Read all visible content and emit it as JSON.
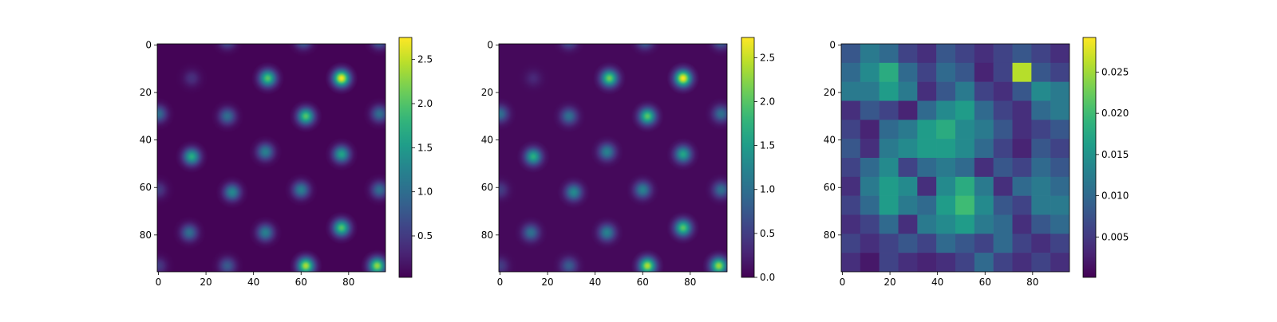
{
  "chart_data": [
    {
      "type": "heatmap",
      "colormap": "viridis",
      "x": [
        14,
        46,
        77,
        0,
        29,
        62,
        93,
        14,
        45,
        77,
        31,
        60,
        93,
        0,
        13,
        45,
        77,
        62,
        92,
        29,
        0,
        29,
        61,
        93
      ],
      "y": [
        14,
        14,
        14,
        29,
        30,
        30,
        29,
        47,
        45,
        46,
        62,
        61,
        61,
        61,
        79,
        79,
        77,
        93,
        93,
        93,
        93,
        -2,
        -2,
        -2
      ],
      "values": [
        0.4,
        2.0,
        2.7,
        1.0,
        1.0,
        2.0,
        1.0,
        1.7,
        1.2,
        1.6,
        1.3,
        1.2,
        1.0,
        0.5,
        1.0,
        1.2,
        2.0,
        2.4,
        2.3,
        0.8,
        0.5,
        0.8,
        1.0,
        1.0
      ],
      "background": 0.05,
      "xlim": [
        -0.5,
        95.5
      ],
      "ylim": [
        95.5,
        -0.5
      ],
      "xticks": [
        0,
        20,
        40,
        60,
        80
      ],
      "yticks": [
        0,
        20,
        40,
        60,
        80
      ],
      "clim": [
        0.03,
        2.75
      ],
      "cticks": [
        0.5,
        {
          "value": 1,
          "label": "1.0"
        },
        1.5,
        {
          "value": 2,
          "label": "2.0"
        },
        2.5
      ]
    },
    {
      "type": "heatmap",
      "colormap": "viridis",
      "x": [
        14,
        46,
        77,
        0,
        29,
        62,
        93,
        14,
        45,
        77,
        31,
        60,
        93,
        0,
        13,
        45,
        77,
        62,
        92,
        29,
        0,
        29,
        61,
        93
      ],
      "y": [
        14,
        14,
        14,
        29,
        30,
        30,
        29,
        47,
        45,
        46,
        62,
        61,
        61,
        61,
        79,
        79,
        77,
        93,
        93,
        93,
        93,
        -2,
        -2,
        -2
      ],
      "values": [
        0.3,
        2.1,
        2.7,
        1.0,
        1.0,
        2.0,
        1.0,
        1.7,
        1.2,
        1.6,
        1.3,
        1.2,
        1.0,
        0.5,
        1.0,
        1.2,
        2.0,
        2.4,
        2.3,
        0.8,
        0.5,
        0.8,
        1.0,
        1.0
      ],
      "background": 0.06,
      "xlim": [
        -0.5,
        95.5
      ],
      "ylim": [
        95.5,
        -0.5
      ],
      "xticks": [
        0,
        20,
        40,
        60,
        80
      ],
      "yticks": [
        0,
        20,
        40,
        60,
        80
      ],
      "clim": [
        0,
        2.73
      ],
      "cticks": [
        {
          "value": 0,
          "label": "0.0"
        },
        0.5,
        {
          "value": 1,
          "label": "1.0"
        },
        1.5,
        {
          "value": 2,
          "label": "2.0"
        },
        2.5
      ]
    },
    {
      "type": "heatmap",
      "colormap": "viridis",
      "x": [
        0,
        8,
        16,
        24,
        32,
        40,
        48,
        56,
        64,
        72,
        80,
        88
      ],
      "y": [
        0,
        8,
        16,
        24,
        32,
        40,
        48,
        56,
        64,
        72,
        80,
        88
      ],
      "z": [
        [
          0.008,
          0.012,
          0.01,
          0.006,
          0.004,
          0.008,
          0.006,
          0.004,
          0.006,
          0.008,
          0.006,
          0.004
        ],
        [
          0.01,
          0.014,
          0.018,
          0.01,
          0.006,
          0.01,
          0.008,
          0.003,
          0.006,
          0.026,
          0.008,
          0.006
        ],
        [
          0.012,
          0.012,
          0.016,
          0.012,
          0.004,
          0.008,
          0.012,
          0.006,
          0.004,
          0.008,
          0.014,
          0.012
        ],
        [
          0.004,
          0.008,
          0.006,
          0.003,
          0.01,
          0.014,
          0.016,
          0.01,
          0.006,
          0.004,
          0.01,
          0.012
        ],
        [
          0.006,
          0.003,
          0.01,
          0.012,
          0.016,
          0.018,
          0.014,
          0.012,
          0.008,
          0.004,
          0.006,
          0.008
        ],
        [
          0.008,
          0.004,
          0.012,
          0.014,
          0.016,
          0.016,
          0.014,
          0.01,
          0.006,
          0.003,
          0.008,
          0.006
        ],
        [
          0.006,
          0.01,
          0.014,
          0.006,
          0.01,
          0.012,
          0.01,
          0.004,
          0.008,
          0.006,
          0.01,
          0.008
        ],
        [
          0.004,
          0.012,
          0.016,
          0.014,
          0.004,
          0.014,
          0.018,
          0.012,
          0.004,
          0.01,
          0.012,
          0.01
        ],
        [
          0.006,
          0.01,
          0.016,
          0.012,
          0.01,
          0.016,
          0.02,
          0.014,
          0.008,
          0.006,
          0.012,
          0.012
        ],
        [
          0.004,
          0.006,
          0.01,
          0.004,
          0.012,
          0.014,
          0.016,
          0.012,
          0.01,
          0.004,
          0.008,
          0.01
        ],
        [
          0.006,
          0.004,
          0.006,
          0.008,
          0.006,
          0.01,
          0.008,
          0.006,
          0.01,
          0.006,
          0.004,
          0.006
        ],
        [
          0.004,
          0.002,
          0.006,
          0.004,
          0.003,
          0.004,
          0.006,
          0.01,
          0.006,
          0.004,
          0.006,
          0.004
        ]
      ],
      "xlim": [
        -0.5,
        95.5
      ],
      "ylim": [
        95.5,
        -0.5
      ],
      "xticks": [
        0,
        20,
        40,
        60,
        80
      ],
      "yticks": [
        0,
        20,
        40,
        60,
        80
      ],
      "clim": [
        0.0001,
        0.0292
      ],
      "cticks": [
        0.005,
        {
          "value": 0.01,
          "label": "0.010"
        },
        0.015,
        {
          "value": 0.02,
          "label": "0.020"
        },
        0.025
      ]
    }
  ]
}
